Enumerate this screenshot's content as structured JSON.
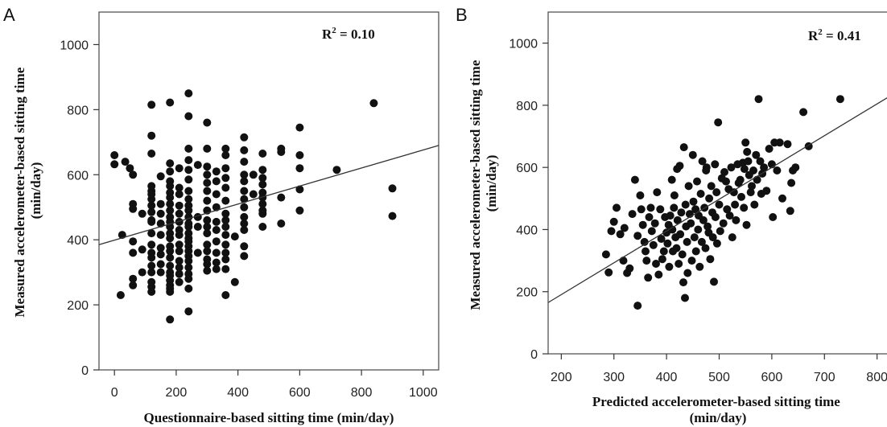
{
  "chart_data": [
    {
      "panel": "A",
      "type": "scatter",
      "annotation": {
        "prefix": "R",
        "sup": "2",
        "suffix": " = 0.10"
      },
      "xlabel": "Questionnaire-based sitting time (min/day)",
      "ylabel": [
        "Measured accelerometer-based sitting time",
        "(min/day)"
      ],
      "xlim": [
        -50,
        1050
      ],
      "ylim": [
        0,
        1100
      ],
      "xticks": [
        0,
        200,
        400,
        600,
        800,
        1000
      ],
      "yticks": [
        0,
        200,
        400,
        600,
        800,
        1000
      ],
      "fit_line": {
        "x0": -50,
        "y0": 385,
        "x1": 1050,
        "y1": 690
      },
      "points": [
        [
          0,
          660
        ],
        [
          0,
          632
        ],
        [
          20,
          230
        ],
        [
          25,
          415
        ],
        [
          35,
          640
        ],
        [
          50,
          620
        ],
        [
          60,
          600
        ],
        [
          60,
          510
        ],
        [
          60,
          495
        ],
        [
          60,
          395
        ],
        [
          60,
          360
        ],
        [
          60,
          280
        ],
        [
          60,
          260
        ],
        [
          90,
          480
        ],
        [
          90,
          370
        ],
        [
          90,
          300
        ],
        [
          120,
          815
        ],
        [
          120,
          720
        ],
        [
          120,
          665
        ],
        [
          120,
          565
        ],
        [
          120,
          550
        ],
        [
          120,
          540
        ],
        [
          120,
          525
        ],
        [
          120,
          505
        ],
        [
          120,
          485
        ],
        [
          120,
          460
        ],
        [
          120,
          455
        ],
        [
          120,
          420
        ],
        [
          120,
          385
        ],
        [
          120,
          360
        ],
        [
          120,
          345
        ],
        [
          120,
          320
        ],
        [
          120,
          300
        ],
        [
          120,
          270
        ],
        [
          120,
          255
        ],
        [
          120,
          240
        ],
        [
          150,
          595
        ],
        [
          150,
          510
        ],
        [
          150,
          480
        ],
        [
          150,
          450
        ],
        [
          150,
          415
        ],
        [
          150,
          375
        ],
        [
          150,
          355
        ],
        [
          150,
          325
        ],
        [
          150,
          300
        ],
        [
          180,
          822
        ],
        [
          180,
          635
        ],
        [
          180,
          610
        ],
        [
          180,
          580
        ],
        [
          180,
          565
        ],
        [
          180,
          545
        ],
        [
          180,
          530
        ],
        [
          180,
          510
        ],
        [
          180,
          490
        ],
        [
          180,
          470
        ],
        [
          180,
          455
        ],
        [
          180,
          440
        ],
        [
          180,
          420
        ],
        [
          180,
          405
        ],
        [
          180,
          380
        ],
        [
          180,
          365
        ],
        [
          180,
          345
        ],
        [
          180,
          320
        ],
        [
          180,
          300
        ],
        [
          180,
          290
        ],
        [
          180,
          275
        ],
        [
          180,
          260
        ],
        [
          180,
          250
        ],
        [
          180,
          240
        ],
        [
          180,
          155
        ],
        [
          210,
          620
        ],
        [
          210,
          560
        ],
        [
          210,
          540
        ],
        [
          210,
          505
        ],
        [
          210,
          480
        ],
        [
          210,
          455
        ],
        [
          210,
          430
        ],
        [
          210,
          415
        ],
        [
          210,
          385
        ],
        [
          210,
          365
        ],
        [
          210,
          335
        ],
        [
          210,
          315
        ],
        [
          210,
          295
        ],
        [
          210,
          270
        ],
        [
          240,
          850
        ],
        [
          240,
          780
        ],
        [
          240,
          680
        ],
        [
          240,
          645
        ],
        [
          240,
          615
        ],
        [
          240,
          585
        ],
        [
          240,
          550
        ],
        [
          240,
          525
        ],
        [
          240,
          505
        ],
        [
          240,
          490
        ],
        [
          240,
          470
        ],
        [
          240,
          450
        ],
        [
          240,
          440
        ],
        [
          240,
          420
        ],
        [
          240,
          405
        ],
        [
          240,
          395
        ],
        [
          240,
          380
        ],
        [
          240,
          365
        ],
        [
          240,
          350
        ],
        [
          240,
          335
        ],
        [
          240,
          315
        ],
        [
          240,
          295
        ],
        [
          240,
          280
        ],
        [
          240,
          250
        ],
        [
          240,
          180
        ],
        [
          270,
          630
        ],
        [
          270,
          470
        ],
        [
          270,
          440
        ],
        [
          270,
          360
        ],
        [
          300,
          760
        ],
        [
          300,
          680
        ],
        [
          300,
          625
        ],
        [
          300,
          600
        ],
        [
          300,
          575
        ],
        [
          300,
          550
        ],
        [
          300,
          520
        ],
        [
          300,
          490
        ],
        [
          300,
          460
        ],
        [
          300,
          440
        ],
        [
          300,
          420
        ],
        [
          300,
          385
        ],
        [
          300,
          365
        ],
        [
          300,
          340
        ],
        [
          300,
          325
        ],
        [
          300,
          305
        ],
        [
          330,
          610
        ],
        [
          330,
          580
        ],
        [
          330,
          540
        ],
        [
          330,
          500
        ],
        [
          330,
          455
        ],
        [
          330,
          430
        ],
        [
          330,
          395
        ],
        [
          330,
          360
        ],
        [
          330,
          330
        ],
        [
          330,
          310
        ],
        [
          360,
          680
        ],
        [
          360,
          660
        ],
        [
          360,
          620
        ],
        [
          360,
          590
        ],
        [
          360,
          560
        ],
        [
          360,
          520
        ],
        [
          360,
          480
        ],
        [
          360,
          460
        ],
        [
          360,
          440
        ],
        [
          360,
          415
        ],
        [
          360,
          385
        ],
        [
          360,
          360
        ],
        [
          360,
          340
        ],
        [
          360,
          310
        ],
        [
          360,
          230
        ],
        [
          390,
          410
        ],
        [
          390,
          270
        ],
        [
          420,
          715
        ],
        [
          420,
          675
        ],
        [
          420,
          640
        ],
        [
          420,
          600
        ],
        [
          420,
          580
        ],
        [
          420,
          550
        ],
        [
          420,
          525
        ],
        [
          420,
          500
        ],
        [
          420,
          470
        ],
        [
          420,
          450
        ],
        [
          420,
          430
        ],
        [
          420,
          380
        ],
        [
          420,
          350
        ],
        [
          450,
          600
        ],
        [
          450,
          540
        ],
        [
          480,
          665
        ],
        [
          480,
          615
        ],
        [
          480,
          590
        ],
        [
          480,
          570
        ],
        [
          480,
          545
        ],
        [
          480,
          530
        ],
        [
          480,
          510
        ],
        [
          480,
          490
        ],
        [
          480,
          480
        ],
        [
          480,
          440
        ],
        [
          540,
          680
        ],
        [
          540,
          670
        ],
        [
          540,
          530
        ],
        [
          540,
          450
        ],
        [
          600,
          745
        ],
        [
          600,
          660
        ],
        [
          600,
          620
        ],
        [
          600,
          555
        ],
        [
          600,
          490
        ],
        [
          720,
          615
        ],
        [
          840,
          820
        ],
        [
          900,
          558
        ],
        [
          900,
          473
        ]
      ]
    },
    {
      "panel": "B",
      "type": "scatter",
      "annotation": {
        "prefix": "R",
        "sup": "2",
        "suffix": " = 0.41"
      },
      "xlabel": [
        "Predicted accelerometer-based sitting time",
        "(min/day)"
      ],
      "ylabel": [
        "Measured accelerometer-based sitting time",
        "(min/day)"
      ],
      "xlim": [
        175,
        825
      ],
      "ylim": [
        0,
        1100
      ],
      "xticks": [
        200,
        300,
        400,
        500,
        600,
        700,
        800
      ],
      "yticks": [
        0,
        200,
        400,
        600,
        800,
        1000
      ],
      "fit_line": {
        "x0": 175,
        "y0": 165,
        "x1": 825,
        "y1": 830
      },
      "points": [
        [
          285,
          320
        ],
        [
          290,
          262
        ],
        [
          295,
          395
        ],
        [
          300,
          425
        ],
        [
          305,
          470
        ],
        [
          312,
          385
        ],
        [
          318,
          300
        ],
        [
          320,
          405
        ],
        [
          325,
          260
        ],
        [
          330,
          275
        ],
        [
          335,
          450
        ],
        [
          340,
          560
        ],
        [
          345,
          155
        ],
        [
          345,
          380
        ],
        [
          350,
          510
        ],
        [
          352,
          465
        ],
        [
          355,
          415
        ],
        [
          358,
          360
        ],
        [
          360,
          330
        ],
        [
          362,
          300
        ],
        [
          365,
          245
        ],
        [
          367,
          440
        ],
        [
          370,
          470
        ],
        [
          372,
          395
        ],
        [
          375,
          350
        ],
        [
          378,
          420
        ],
        [
          380,
          290
        ],
        [
          382,
          520
        ],
        [
          385,
          255
        ],
        [
          388,
          465
        ],
        [
          390,
          370
        ],
        [
          392,
          305
        ],
        [
          395,
          330
        ],
        [
          397,
          440
        ],
        [
          400,
          390
        ],
        [
          402,
          355
        ],
        [
          404,
          415
        ],
        [
          405,
          280
        ],
        [
          407,
          445
        ],
        [
          410,
          560
        ],
        [
          411,
          400
        ],
        [
          412,
          330
        ],
        [
          414,
          470
        ],
        [
          415,
          510
        ],
        [
          417,
          375
        ],
        [
          419,
          340
        ],
        [
          420,
          595
        ],
        [
          421,
          430
        ],
        [
          423,
          290
        ],
        [
          425,
          605
        ],
        [
          426,
          385
        ],
        [
          428,
          455
        ],
        [
          430,
          320
        ],
        [
          432,
          230
        ],
        [
          433,
          665
        ],
        [
          435,
          180
        ],
        [
          436,
          480
        ],
        [
          437,
          410
        ],
        [
          439,
          360
        ],
        [
          440,
          260
        ],
        [
          442,
          540
        ],
        [
          444,
          450
        ],
        [
          446,
          420
        ],
        [
          448,
          300
        ],
        [
          450,
          640
        ],
        [
          451,
          490
        ],
        [
          453,
          375
        ],
        [
          455,
          465
        ],
        [
          456,
          330
        ],
        [
          458,
          555
        ],
        [
          460,
          400
        ],
        [
          461,
          445
        ],
        [
          463,
          280
        ],
        [
          465,
          515
        ],
        [
          467,
          360
        ],
        [
          468,
          620
        ],
        [
          470,
          430
        ],
        [
          472,
          470
        ],
        [
          474,
          340
        ],
        [
          475,
          590
        ],
        [
          476,
          600
        ],
        [
          478,
          410
        ],
        [
          480,
          390
        ],
        [
          481,
          500
        ],
        [
          483,
          305
        ],
        [
          485,
          540
        ],
        [
          487,
          455
        ],
        [
          488,
          375
        ],
        [
          490,
          232
        ],
        [
          492,
          610
        ],
        [
          493,
          440
        ],
        [
          495,
          520
        ],
        [
          496,
          355
        ],
        [
          498,
          745
        ],
        [
          500,
          480
        ],
        [
          502,
          395
        ],
        [
          505,
          565
        ],
        [
          508,
          420
        ],
        [
          510,
          585
        ],
        [
          513,
          555
        ],
        [
          515,
          465
        ],
        [
          518,
          530
        ],
        [
          520,
          445
        ],
        [
          523,
          600
        ],
        [
          525,
          375
        ],
        [
          528,
          520
        ],
        [
          530,
          480
        ],
        [
          532,
          430
        ],
        [
          535,
          610
        ],
        [
          537,
          550
        ],
        [
          540,
          560
        ],
        [
          542,
          505
        ],
        [
          545,
          615
        ],
        [
          547,
          470
        ],
        [
          548,
          595
        ],
        [
          550,
          680
        ],
        [
          552,
          415
        ],
        [
          553,
          650
        ],
        [
          555,
          620
        ],
        [
          557,
          575
        ],
        [
          560,
          520
        ],
        [
          562,
          540
        ],
        [
          565,
          590
        ],
        [
          567,
          480
        ],
        [
          570,
          640
        ],
        [
          572,
          560
        ],
        [
          575,
          820
        ],
        [
          578,
          620
        ],
        [
          580,
          515
        ],
        [
          582,
          580
        ],
        [
          585,
          600
        ],
        [
          590,
          525
        ],
        [
          595,
          660
        ],
        [
          600,
          610
        ],
        [
          602,
          440
        ],
        [
          605,
          680
        ],
        [
          610,
          590
        ],
        [
          615,
          680
        ],
        [
          620,
          500
        ],
        [
          630,
          675
        ],
        [
          635,
          460
        ],
        [
          637,
          550
        ],
        [
          640,
          590
        ],
        [
          645,
          600
        ],
        [
          660,
          778
        ],
        [
          670,
          668
        ],
        [
          730,
          820
        ]
      ]
    }
  ]
}
